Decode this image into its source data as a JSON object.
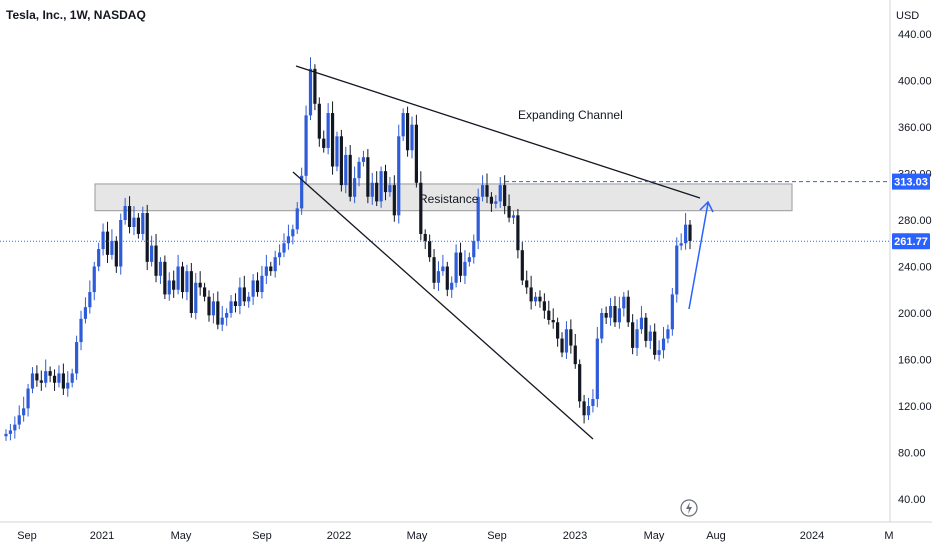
{
  "header": {
    "title": "Tesla, Inc., 1W, NASDAQ"
  },
  "colors": {
    "up": "#2e5bd8",
    "down": "#131722",
    "line": "#131722",
    "accent": "#2962ff",
    "zone_fill": "#e6e6e6"
  },
  "chart_data": {
    "type": "candlestick",
    "title": "Tesla, Inc., 1W, NASDAQ",
    "currency": "USD",
    "ylim": [
      20,
      460
    ],
    "yticks": [
      40,
      80,
      120,
      160,
      200,
      240,
      280,
      320,
      360,
      400,
      440
    ],
    "ytick_labels": [
      "40.00",
      "80.00",
      "120.00",
      "160.00",
      "200.00",
      "240.00",
      "280.00",
      "320.00",
      "360.00",
      "400.00",
      "440.00"
    ],
    "xticks": [
      "Sep",
      "2021",
      "May",
      "Sep",
      "2022",
      "May",
      "Sep",
      "2023",
      "May",
      "Aug",
      "2024",
      "M"
    ],
    "current_price": {
      "value": 261.77,
      "label": "261.77"
    },
    "level": {
      "value": 313.03,
      "label": "313.03"
    },
    "resistance_zone": {
      "low": 288,
      "high": 311,
      "label": "Resistance"
    },
    "channel_label": "Expanding Channel",
    "closes": [
      96,
      99,
      104,
      112,
      118,
      135,
      148,
      142,
      140,
      150,
      146,
      140,
      148,
      135,
      140,
      148,
      175,
      195,
      205,
      218,
      240,
      255,
      270,
      250,
      262,
      240,
      280,
      292,
      274,
      282,
      268,
      286,
      244,
      258,
      232,
      244,
      216,
      228,
      220,
      240,
      218,
      236,
      200,
      226,
      222,
      214,
      198,
      210,
      190,
      196,
      200,
      210,
      206,
      222,
      210,
      214,
      228,
      218,
      232,
      240,
      236,
      248,
      252,
      260,
      266,
      272,
      290,
      318,
      370,
      410,
      380,
      350,
      342,
      372,
      326,
      352,
      310,
      336,
      300,
      316,
      330,
      334,
      300,
      312,
      296,
      322,
      304,
      310,
      284,
      352,
      372,
      340,
      362,
      312,
      268,
      262,
      248,
      226,
      236,
      240,
      220,
      226,
      252,
      232,
      244,
      248,
      262,
      300,
      310,
      300,
      294,
      296,
      310,
      292,
      282,
      284,
      254,
      228,
      222,
      210,
      214,
      210,
      202,
      194,
      192,
      178,
      166,
      186,
      172,
      156,
      124,
      112,
      120,
      126,
      178,
      200,
      196,
      206,
      192,
      204,
      214,
      192,
      170,
      186,
      196,
      176,
      184,
      164,
      168,
      178,
      186,
      216,
      258,
      260,
      276,
      262
    ],
    "opens": null
  }
}
